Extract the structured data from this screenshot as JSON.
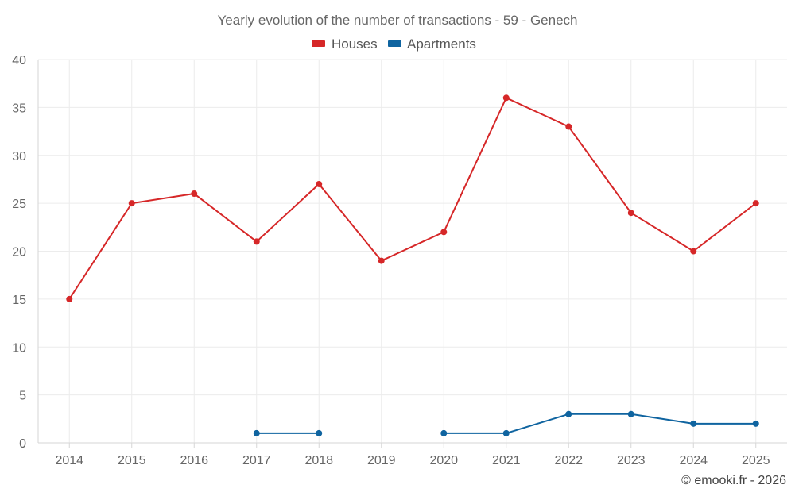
{
  "chart_data": {
    "type": "line",
    "title": "Yearly evolution of the number of transactions - 59 - Genech",
    "categories": [
      "2014",
      "2015",
      "2016",
      "2017",
      "2018",
      "2019",
      "2020",
      "2021",
      "2022",
      "2023",
      "2024",
      "2025"
    ],
    "series": [
      {
        "name": "Houses",
        "color": "#d62728",
        "values": [
          15,
          25,
          26,
          21,
          27,
          19,
          22,
          36,
          33,
          24,
          20,
          25
        ]
      },
      {
        "name": "Apartments",
        "color": "#0f64a0",
        "values": [
          null,
          null,
          null,
          1,
          1,
          null,
          1,
          1,
          3,
          3,
          2,
          2
        ]
      }
    ],
    "ylim": [
      0,
      40
    ],
    "yticks": [
      0,
      5,
      10,
      15,
      20,
      25,
      30,
      35,
      40
    ],
    "xlabel": "",
    "ylabel": "",
    "grid": true,
    "legend": "top-center"
  },
  "footer": {
    "credit": "© emooki.fr - 2026"
  }
}
